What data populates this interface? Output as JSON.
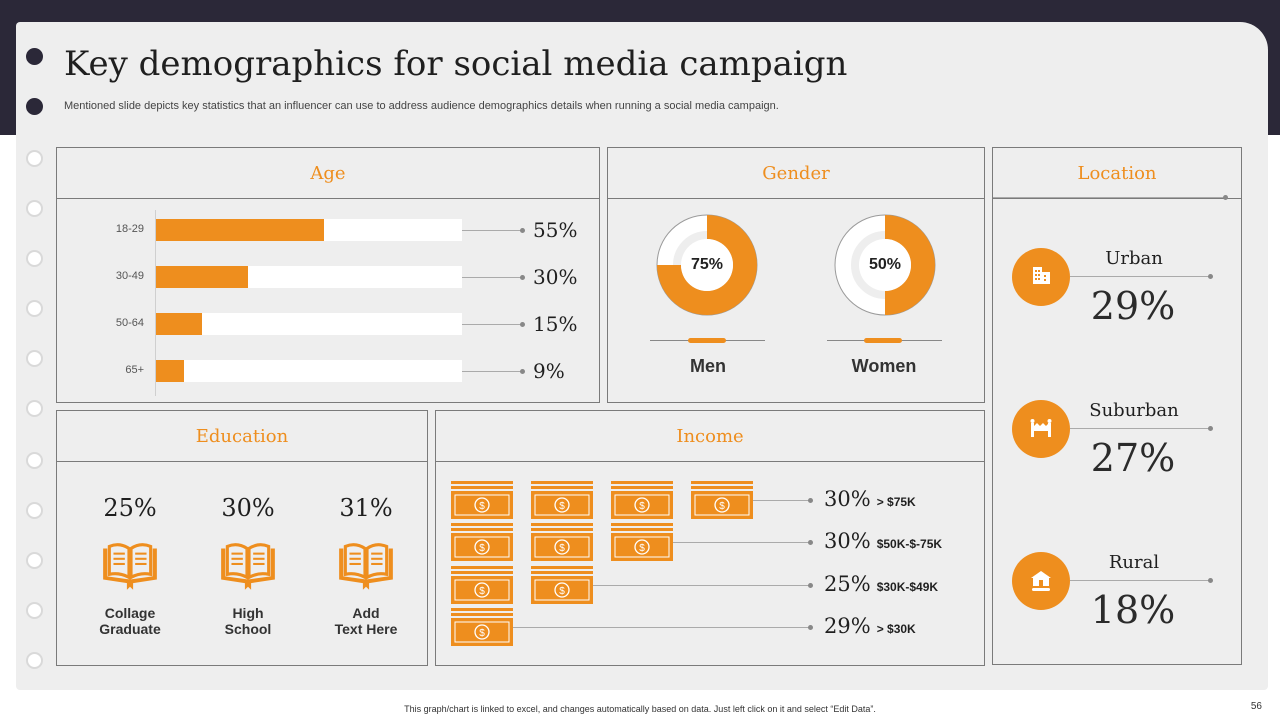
{
  "title": "Key demographics for social media campaign",
  "subtitle": "Mentioned slide depicts key statistics that an influencer can use to address audience demographics details when running a social media campaign.",
  "colors": {
    "accent": "#ee8e1e",
    "dark": "#2b2838",
    "paper": "#eeeeee"
  },
  "age": {
    "heading": "Age",
    "rows": [
      {
        "label": "18-29",
        "value": 55,
        "text": "55%"
      },
      {
        "label": "30-49",
        "value": 30,
        "text": "30%"
      },
      {
        "label": "50-64",
        "value": 15,
        "text": "15%"
      },
      {
        "label": "65+",
        "value": 9,
        "text": "9%"
      }
    ]
  },
  "gender": {
    "heading": "Gender",
    "men": {
      "label": "Men",
      "value": 75,
      "text": "75%"
    },
    "women": {
      "label": "Women",
      "value": 50,
      "text": "50%"
    }
  },
  "location": {
    "heading": "Location",
    "items": [
      {
        "name": "Urban",
        "value": "29%",
        "icon": "building-icon"
      },
      {
        "name": "Suburban",
        "value": "27%",
        "icon": "houses-icon"
      },
      {
        "name": "Rural",
        "value": "18%",
        "icon": "farm-icon"
      }
    ]
  },
  "education": {
    "heading": "Education",
    "items": [
      {
        "pct": "25%",
        "line1": "Collage",
        "line2": "Graduate"
      },
      {
        "pct": "30%",
        "line1": "High",
        "line2": "School"
      },
      {
        "pct": "31%",
        "line1": "Add",
        "line2": "Text Here"
      }
    ]
  },
  "income": {
    "heading": "Income",
    "rows": [
      {
        "pct": "30%",
        "range": "> $75K",
        "bills": 4
      },
      {
        "pct": "30%",
        "range": "$50K-$-75K",
        "bills": 3
      },
      {
        "pct": "25%",
        "range": "$30K-$49K",
        "bills": 2
      },
      {
        "pct": "29%",
        "range": "> $30K",
        "bills": 1
      }
    ]
  },
  "footer": "This graph/chart is linked to excel, and changes automatically based on data. Just left click on it and select “Edit Data”.",
  "page_number": "56"
}
